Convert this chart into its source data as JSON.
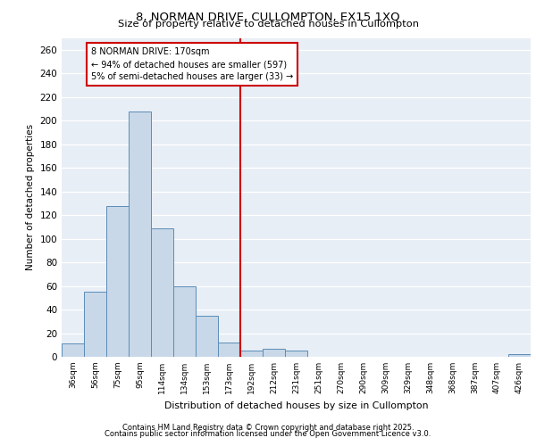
{
  "title_line1": "8, NORMAN DRIVE, CULLOMPTON, EX15 1XQ",
  "title_line2": "Size of property relative to detached houses in Cullompton",
  "xlabel": "Distribution of detached houses by size in Cullompton",
  "ylabel": "Number of detached properties",
  "categories": [
    "36sqm",
    "56sqm",
    "75sqm",
    "95sqm",
    "114sqm",
    "134sqm",
    "153sqm",
    "173sqm",
    "192sqm",
    "212sqm",
    "231sqm",
    "251sqm",
    "270sqm",
    "290sqm",
    "309sqm",
    "329sqm",
    "348sqm",
    "368sqm",
    "387sqm",
    "407sqm",
    "426sqm"
  ],
  "values": [
    11,
    55,
    128,
    208,
    109,
    60,
    35,
    12,
    5,
    7,
    5,
    0,
    0,
    0,
    0,
    0,
    0,
    0,
    0,
    0,
    2
  ],
  "bar_color": "#c8d8e8",
  "bar_edge_color": "#5b8db8",
  "vline_color": "#cc0000",
  "vline_index": 7.5,
  "annotation_text": "8 NORMAN DRIVE: 170sqm\n← 94% of detached houses are smaller (597)\n5% of semi-detached houses are larger (33) →",
  "annotation_box_color": "#ffffff",
  "annotation_box_edge": "#cc0000",
  "ylim": [
    0,
    270
  ],
  "yticks": [
    0,
    20,
    40,
    60,
    80,
    100,
    120,
    140,
    160,
    180,
    200,
    220,
    240,
    260
  ],
  "background_color": "#e8eef5",
  "grid_color": "#ffffff",
  "footer_line1": "Contains HM Land Registry data © Crown copyright and database right 2025.",
  "footer_line2": "Contains public sector information licensed under the Open Government Licence v3.0."
}
